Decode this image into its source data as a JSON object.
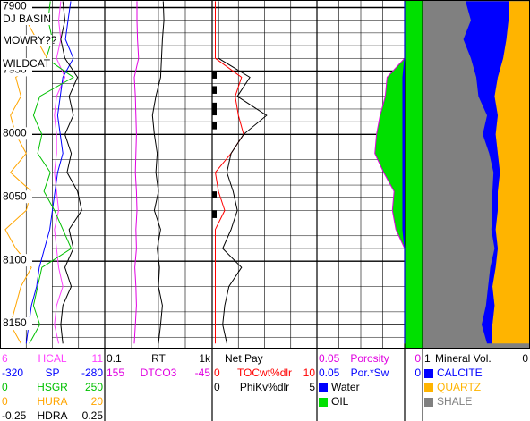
{
  "depth_range": [
    7894,
    8169
  ],
  "depth_ticks": [
    7900,
    7950,
    8000,
    8050,
    8100,
    8150
  ],
  "annotations": [
    "DJ BASIN",
    "MOWRY??",
    "WILDCAT"
  ],
  "depths": [
    7895,
    7910,
    7925,
    7940,
    7955,
    7970,
    7985,
    8000,
    8015,
    8030,
    8045,
    8060,
    8075,
    8090,
    8105,
    8120,
    8135,
    8150,
    8165
  ],
  "net_pay": [
    [
      7950,
      7956
    ],
    [
      7962,
      7968
    ],
    [
      7975,
      7985
    ],
    [
      7990,
      7996
    ],
    [
      8045,
      8050
    ],
    [
      8060,
      8066
    ]
  ],
  "tracks": [
    {
      "curves": [
        {
          "name": "HCAL",
          "left": 6,
          "right": 11,
          "color": "#ff40ff",
          "values": [
            8.9,
            8.8,
            8.9,
            8.7,
            9.1,
            8.7,
            8.6,
            8.7,
            8.7,
            8.6,
            8.7,
            8.8,
            8.6,
            8.7,
            8.8,
            9.0,
            8.7,
            8.6,
            8.8
          ]
        },
        {
          "name": "SP",
          "left": -320,
          "right": -280,
          "color": "#0000ff",
          "values": [
            -293,
            -294,
            -295,
            -292,
            -296,
            -297,
            -298,
            -297,
            -296,
            -298,
            -299,
            -300,
            -301,
            -303,
            -305,
            -306,
            -308,
            -309,
            -310
          ]
        },
        {
          "name": "HSGR",
          "left": 0,
          "right": 250,
          "color": "#00c000",
          "values": [
            120,
            115,
            125,
            110,
            175,
            95,
            80,
            100,
            90,
            120,
            105,
            130,
            150,
            170,
            100,
            90,
            80,
            95,
            70
          ]
        },
        {
          "name": "HURA",
          "left": 0,
          "right": 20,
          "color": "#ffa500",
          "values": [
            6,
            5,
            7,
            9,
            3,
            4,
            2,
            3,
            5,
            2,
            6,
            5,
            1,
            3,
            6,
            4,
            3,
            2,
            4
          ]
        },
        {
          "name": "HDRA",
          "left": -0.25,
          "right": 0.25,
          "color": "#000000",
          "values": [
            0.05,
            0.06,
            0.04,
            0.06,
            0.12,
            0.08,
            0.1,
            0.06,
            0.09,
            0.07,
            0.12,
            0.14,
            0.08,
            0.1,
            0.06,
            0.09,
            0.05,
            0.04,
            0.05
          ]
        }
      ]
    },
    {
      "curves": [
        {
          "name": "RT",
          "left": 0.1,
          "right": {
            "value": 1000,
            "label": "1k"
          },
          "log": true,
          "color": "#000000",
          "values": [
            15,
            16,
            14,
            13,
            12,
            8,
            6,
            7,
            9,
            8,
            10,
            7,
            12,
            9,
            11,
            10,
            14,
            12,
            10
          ]
        },
        {
          "name": "DTCO3",
          "left": 155,
          "right": -45,
          "color": "#e000e0",
          "values": [
            95,
            95,
            94,
            92,
            100,
            98,
            97,
            96,
            97,
            98,
            96,
            95,
            97,
            96,
            99,
            97,
            96,
            98,
            100
          ]
        }
      ]
    },
    {
      "flag": "Net Pay",
      "curves": [
        {
          "name": "TOCwt%dlr",
          "left": 0,
          "right": 10,
          "color": "#ff0000",
          "values": [
            0.3,
            0.3,
            0.3,
            0.3,
            2.8,
            2.2,
            2.5,
            3.0,
            1.8,
            0.3,
            0.6,
            1.2,
            0.3,
            0.3,
            0.3,
            0.3,
            0.3,
            0.3,
            0.3
          ]
        },
        {
          "name": "PhiKv%dlr",
          "left": 0,
          "right": 5,
          "color": "#000000",
          "values": [
            0.3,
            0.3,
            0.3,
            0.3,
            1.8,
            1.2,
            2.6,
            1.5,
            0.9,
            0.7,
            1.0,
            1.2,
            0.9,
            0.5,
            1.4,
            0.8,
            0.6,
            0.5,
            0.7
          ]
        }
      ]
    },
    {
      "curves": [
        {
          "name": "Porosity",
          "left": 0.05,
          "right": 0,
          "color": "#e000e0",
          "fill": "#00e000",
          "values": [
            0,
            0,
            0,
            0,
            0.01,
            0.011,
            0.014,
            0.016,
            0.017,
            0.012,
            0.006,
            0.007,
            0.005,
            0,
            0,
            0,
            0,
            0,
            0
          ]
        },
        {
          "name": "Por.*Sw",
          "left": 0.05,
          "right": 0,
          "color": "#0000ff",
          "fill": "#0000ff",
          "values": [
            0,
            0,
            0,
            0,
            0.001,
            0.001,
            0.001,
            0.001,
            0.001,
            0.001,
            0.001,
            0.001,
            0.001,
            0,
            0,
            0,
            0,
            0,
            0
          ]
        }
      ],
      "swatches": [
        {
          "name": "Water",
          "color": "#0000ff"
        },
        {
          "name": "OIL",
          "color": "#00e000"
        }
      ]
    },
    {
      "header": {
        "name": "Mineral Vol.",
        "left": 1,
        "right": 0
      },
      "components": [
        {
          "name": "CALCITE",
          "color": "#0000ff",
          "values": [
            0.4,
            0.35,
            0.4,
            0.3,
            0.2,
            0.15,
            0.1,
            0.12,
            0.08,
            0.06,
            0.05,
            0.05,
            0.04,
            0.03,
            0.05,
            0.04,
            0.08,
            0.1,
            0.05
          ]
        },
        {
          "name": "QUARTZ",
          "color": "#ffb400",
          "values": [
            0.2,
            0.2,
            0.22,
            0.25,
            0.3,
            0.33,
            0.3,
            0.32,
            0.3,
            0.28,
            0.3,
            0.3,
            0.32,
            0.3,
            0.32,
            0.35,
            0.33,
            0.35,
            0.35
          ]
        },
        {
          "name": "SHALE",
          "color": "#808080"
        }
      ]
    }
  ]
}
